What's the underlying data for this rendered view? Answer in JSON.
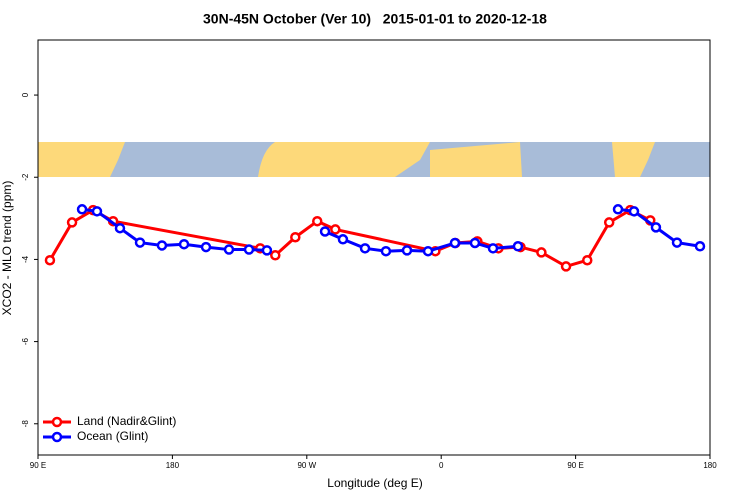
{
  "chart_data": {
    "type": "line",
    "title": "30N-45N October (Ver 10)   2015-01-01 to 2020-12-18",
    "x_label": "Longitude (deg E)",
    "y_label": "XCO2 - MLO trend (ppm)",
    "xlim": [
      90,
      540
    ],
    "xticks": [
      {
        "value": 90,
        "label": "90 E"
      },
      {
        "value": 180,
        "label": "180"
      },
      {
        "value": 270,
        "label": "90 W"
      },
      {
        "value": 360,
        "label": "0"
      },
      {
        "value": 450,
        "label": "90 E"
      },
      {
        "value": 540,
        "label": "180"
      }
    ],
    "ylim": [
      -8.76,
      1.34
    ],
    "yticks": [
      0,
      -2,
      -4,
      -6,
      -8
    ],
    "legend": "bottom-left",
    "series": [
      {
        "name": "Land (Nadir&Glint)",
        "color": "#ff0000",
        "x": [
          98,
          112.8,
          126.9,
          140.3,
          238.8,
          248.9,
          262.3,
          277,
          289.1,
          356.1,
          369.5,
          384.2,
          398.3,
          413.1,
          427.1,
          443.6,
          457.8,
          472.5,
          486.6,
          500
        ],
        "values": [
          -4.02,
          -3.1,
          -2.8,
          -3.07,
          -3.73,
          -3.9,
          -3.46,
          -3.07,
          -3.27,
          -3.8,
          -3.6,
          -3.56,
          -3.73,
          -3.7,
          -3.83,
          -4.17,
          -4.02,
          -3.1,
          -2.8,
          -3.05
        ]
      },
      {
        "name": "Ocean (Glint)",
        "color": "#0000ff",
        "x": [
          119.5,
          129.5,
          144.9,
          158.3,
          173,
          187.8,
          202.5,
          217.9,
          231.3,
          243.3,
          null,
          282.2,
          294.2,
          309,
          323,
          337.1,
          351.2,
          369.2,
          382.6,
          394.7,
          411.4,
          null,
          478.4,
          489.1,
          503.8,
          517.9,
          533.3
        ],
        "values": [
          -2.78,
          -2.83,
          -3.24,
          -3.59,
          -3.66,
          -3.63,
          -3.7,
          -3.76,
          -3.76,
          -3.78,
          null,
          -3.32,
          -3.51,
          -3.73,
          -3.8,
          -3.78,
          -3.8,
          -3.6,
          -3.6,
          -3.73,
          -3.68,
          null,
          -2.78,
          -2.83,
          -3.22,
          -3.59,
          -3.68
        ]
      }
    ]
  }
}
